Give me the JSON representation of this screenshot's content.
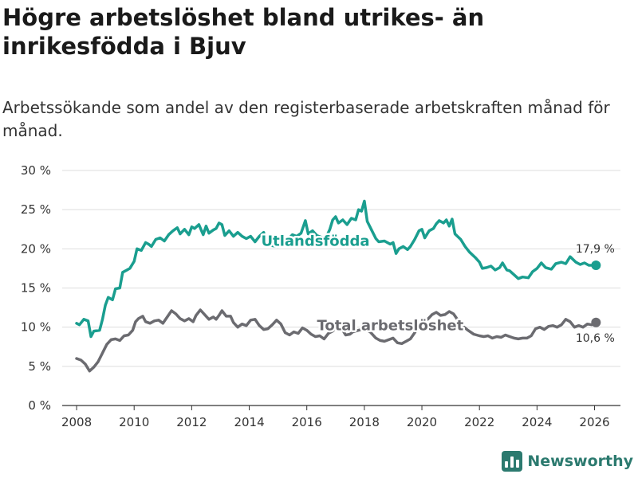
{
  "header": {
    "title": "Högre arbetslöshet bland utrikes- än inrikesfödda i Bjuv",
    "subtitle": "Arbetssökande som andel av den registerbaserade arbetskraften månad för månad."
  },
  "brand": {
    "name": "Newsworthy",
    "icon": "newsworthy-logo-icon"
  },
  "colors": {
    "utlandsfodda": "#1a9e8f",
    "total": "#6b6b70",
    "grid": "#dddddd",
    "axis": "#333333"
  },
  "chart_data": {
    "type": "line",
    "title": "Högre arbetslöshet bland utrikes- än inrikesfödda i Bjuv",
    "xlabel": "",
    "ylabel": "",
    "xlim": [
      2007.5,
      2026.9
    ],
    "ylim": [
      0,
      30
    ],
    "x_ticks": [
      2008,
      2010,
      2012,
      2014,
      2016,
      2018,
      2020,
      2022,
      2024,
      2026
    ],
    "x_tick_labels": [
      "2008",
      "2010",
      "2012",
      "2014",
      "2016",
      "2018",
      "2020",
      "2022",
      "2024",
      "2026"
    ],
    "y_ticks": [
      0,
      5,
      10,
      15,
      20,
      25,
      30
    ],
    "y_tick_labels": [
      "0 %",
      "5 %",
      "10 %",
      "15 %",
      "20 %",
      "25 %",
      "30 %"
    ],
    "grid": true,
    "series": [
      {
        "name": "Utlandsfödda",
        "color": "#1a9e8f",
        "end_label": "17,9 %",
        "points": [
          [
            2008.0,
            10.5
          ],
          [
            2008.1,
            10.3
          ],
          [
            2008.25,
            11.0
          ],
          [
            2008.4,
            10.8
          ],
          [
            2008.5,
            8.8
          ],
          [
            2008.6,
            9.5
          ],
          [
            2008.8,
            9.6
          ],
          [
            2008.9,
            11.0
          ],
          [
            2009.0,
            12.8
          ],
          [
            2009.1,
            13.8
          ],
          [
            2009.25,
            13.5
          ],
          [
            2009.35,
            14.9
          ],
          [
            2009.5,
            15.0
          ],
          [
            2009.6,
            17.0
          ],
          [
            2009.75,
            17.3
          ],
          [
            2009.85,
            17.5
          ],
          [
            2010.0,
            18.4
          ],
          [
            2010.1,
            20.0
          ],
          [
            2010.25,
            19.8
          ],
          [
            2010.4,
            20.8
          ],
          [
            2010.5,
            20.6
          ],
          [
            2010.6,
            20.3
          ],
          [
            2010.75,
            21.2
          ],
          [
            2010.9,
            21.4
          ],
          [
            2011.05,
            21.0
          ],
          [
            2011.2,
            21.8
          ],
          [
            2011.35,
            22.3
          ],
          [
            2011.5,
            22.7
          ],
          [
            2011.6,
            21.9
          ],
          [
            2011.75,
            22.5
          ],
          [
            2011.9,
            21.8
          ],
          [
            2012.0,
            22.8
          ],
          [
            2012.1,
            22.6
          ],
          [
            2012.25,
            23.1
          ],
          [
            2012.4,
            21.8
          ],
          [
            2012.5,
            22.9
          ],
          [
            2012.6,
            22.0
          ],
          [
            2012.75,
            22.4
          ],
          [
            2012.85,
            22.6
          ],
          [
            2012.95,
            23.3
          ],
          [
            2013.05,
            23.1
          ],
          [
            2013.15,
            21.7
          ],
          [
            2013.3,
            22.3
          ],
          [
            2013.45,
            21.6
          ],
          [
            2013.6,
            22.1
          ],
          [
            2013.75,
            21.6
          ],
          [
            2013.9,
            21.3
          ],
          [
            2014.05,
            21.6
          ],
          [
            2014.2,
            20.9
          ],
          [
            2014.35,
            21.6
          ],
          [
            2014.5,
            22.1
          ],
          [
            2014.6,
            20.8
          ],
          [
            2014.8,
            20.4
          ],
          [
            2015.0,
            20.3
          ],
          [
            2015.1,
            20.7
          ],
          [
            2015.3,
            21.0
          ],
          [
            2015.5,
            21.8
          ],
          [
            2015.65,
            21.6
          ],
          [
            2015.8,
            22.0
          ],
          [
            2015.95,
            23.6
          ],
          [
            2016.05,
            21.9
          ],
          [
            2016.2,
            22.3
          ],
          [
            2016.35,
            21.7
          ],
          [
            2016.5,
            21.5
          ],
          [
            2016.65,
            21.3
          ],
          [
            2016.8,
            22.5
          ],
          [
            2016.9,
            23.7
          ],
          [
            2017.0,
            24.1
          ],
          [
            2017.1,
            23.3
          ],
          [
            2017.25,
            23.7
          ],
          [
            2017.4,
            23.1
          ],
          [
            2017.55,
            23.9
          ],
          [
            2017.7,
            23.7
          ],
          [
            2017.8,
            25.0
          ],
          [
            2017.9,
            24.8
          ],
          [
            2018.0,
            26.1
          ],
          [
            2018.1,
            23.5
          ],
          [
            2018.25,
            22.4
          ],
          [
            2018.4,
            21.3
          ],
          [
            2018.5,
            20.9
          ],
          [
            2018.7,
            21.0
          ],
          [
            2018.9,
            20.6
          ],
          [
            2019.0,
            20.8
          ],
          [
            2019.1,
            19.4
          ],
          [
            2019.2,
            20.0
          ],
          [
            2019.35,
            20.3
          ],
          [
            2019.5,
            19.9
          ],
          [
            2019.6,
            20.3
          ],
          [
            2019.75,
            21.2
          ],
          [
            2019.9,
            22.3
          ],
          [
            2020.0,
            22.5
          ],
          [
            2020.1,
            21.4
          ],
          [
            2020.25,
            22.3
          ],
          [
            2020.4,
            22.6
          ],
          [
            2020.5,
            23.2
          ],
          [
            2020.6,
            23.6
          ],
          [
            2020.75,
            23.3
          ],
          [
            2020.85,
            23.7
          ],
          [
            2020.95,
            22.9
          ],
          [
            2021.05,
            23.8
          ],
          [
            2021.15,
            21.9
          ],
          [
            2021.35,
            21.2
          ],
          [
            2021.5,
            20.3
          ],
          [
            2021.65,
            19.6
          ],
          [
            2021.85,
            18.9
          ],
          [
            2022.0,
            18.3
          ],
          [
            2022.1,
            17.5
          ],
          [
            2022.25,
            17.6
          ],
          [
            2022.4,
            17.8
          ],
          [
            2022.55,
            17.3
          ],
          [
            2022.7,
            17.6
          ],
          [
            2022.8,
            18.2
          ],
          [
            2022.95,
            17.3
          ],
          [
            2023.05,
            17.2
          ],
          [
            2023.2,
            16.7
          ],
          [
            2023.35,
            16.2
          ],
          [
            2023.5,
            16.4
          ],
          [
            2023.7,
            16.3
          ],
          [
            2023.85,
            17.1
          ],
          [
            2024.0,
            17.5
          ],
          [
            2024.15,
            18.2
          ],
          [
            2024.3,
            17.6
          ],
          [
            2024.5,
            17.4
          ],
          [
            2024.65,
            18.1
          ],
          [
            2024.85,
            18.3
          ],
          [
            2025.0,
            18.1
          ],
          [
            2025.15,
            19.0
          ],
          [
            2025.35,
            18.3
          ],
          [
            2025.5,
            18.0
          ],
          [
            2025.65,
            18.2
          ],
          [
            2025.8,
            17.9
          ],
          [
            2026.05,
            17.9
          ]
        ]
      },
      {
        "name": "Total arbetslöshet",
        "color": "#6b6b70",
        "end_label": "10,6 %",
        "points": [
          [
            2008.0,
            6.0
          ],
          [
            2008.15,
            5.8
          ],
          [
            2008.3,
            5.3
          ],
          [
            2008.45,
            4.4
          ],
          [
            2008.6,
            4.9
          ],
          [
            2008.75,
            5.6
          ],
          [
            2008.9,
            6.7
          ],
          [
            2009.05,
            7.8
          ],
          [
            2009.2,
            8.4
          ],
          [
            2009.35,
            8.5
          ],
          [
            2009.5,
            8.3
          ],
          [
            2009.65,
            8.9
          ],
          [
            2009.8,
            9.0
          ],
          [
            2009.95,
            9.6
          ],
          [
            2010.05,
            10.7
          ],
          [
            2010.15,
            11.1
          ],
          [
            2010.3,
            11.4
          ],
          [
            2010.4,
            10.7
          ],
          [
            2010.55,
            10.5
          ],
          [
            2010.7,
            10.8
          ],
          [
            2010.85,
            10.9
          ],
          [
            2011.0,
            10.5
          ],
          [
            2011.15,
            11.3
          ],
          [
            2011.3,
            12.1
          ],
          [
            2011.45,
            11.7
          ],
          [
            2011.6,
            11.1
          ],
          [
            2011.75,
            10.8
          ],
          [
            2011.9,
            11.1
          ],
          [
            2012.05,
            10.7
          ],
          [
            2012.15,
            11.5
          ],
          [
            2012.3,
            12.2
          ],
          [
            2012.45,
            11.6
          ],
          [
            2012.6,
            11.0
          ],
          [
            2012.75,
            11.3
          ],
          [
            2012.85,
            11.0
          ],
          [
            2012.95,
            11.5
          ],
          [
            2013.05,
            12.1
          ],
          [
            2013.2,
            11.4
          ],
          [
            2013.35,
            11.4
          ],
          [
            2013.45,
            10.6
          ],
          [
            2013.6,
            10.0
          ],
          [
            2013.75,
            10.4
          ],
          [
            2013.9,
            10.2
          ],
          [
            2014.05,
            10.9
          ],
          [
            2014.2,
            11.0
          ],
          [
            2014.35,
            10.2
          ],
          [
            2014.5,
            9.7
          ],
          [
            2014.65,
            9.8
          ],
          [
            2014.8,
            10.3
          ],
          [
            2014.95,
            10.9
          ],
          [
            2015.1,
            10.4
          ],
          [
            2015.25,
            9.3
          ],
          [
            2015.4,
            9.0
          ],
          [
            2015.55,
            9.4
          ],
          [
            2015.7,
            9.2
          ],
          [
            2015.85,
            9.9
          ],
          [
            2016.0,
            9.6
          ],
          [
            2016.15,
            9.1
          ],
          [
            2016.3,
            8.8
          ],
          [
            2016.45,
            8.9
          ],
          [
            2016.6,
            8.5
          ],
          [
            2016.75,
            9.2
          ],
          [
            2016.9,
            9.5
          ],
          [
            2017.05,
            10.1
          ],
          [
            2017.2,
            9.9
          ],
          [
            2017.35,
            9.0
          ],
          [
            2017.5,
            9.1
          ],
          [
            2017.6,
            9.4
          ],
          [
            2017.8,
            9.6
          ],
          [
            2018.0,
            9.8
          ],
          [
            2018.2,
            9.4
          ],
          [
            2018.4,
            8.6
          ],
          [
            2018.55,
            8.3
          ],
          [
            2018.7,
            8.2
          ],
          [
            2018.85,
            8.4
          ],
          [
            2019.0,
            8.6
          ],
          [
            2019.15,
            8.0
          ],
          [
            2019.3,
            7.9
          ],
          [
            2019.45,
            8.2
          ],
          [
            2019.6,
            8.5
          ],
          [
            2019.75,
            9.3
          ],
          [
            2019.9,
            10.2
          ],
          [
            2020.05,
            10.9
          ],
          [
            2020.2,
            11.0
          ],
          [
            2020.35,
            11.6
          ],
          [
            2020.5,
            11.9
          ],
          [
            2020.65,
            11.5
          ],
          [
            2020.8,
            11.6
          ],
          [
            2020.95,
            12.0
          ],
          [
            2021.1,
            11.7
          ],
          [
            2021.25,
            10.9
          ],
          [
            2021.4,
            10.2
          ],
          [
            2021.6,
            9.6
          ],
          [
            2021.8,
            9.1
          ],
          [
            2022.0,
            8.9
          ],
          [
            2022.15,
            8.8
          ],
          [
            2022.3,
            8.9
          ],
          [
            2022.45,
            8.6
          ],
          [
            2022.6,
            8.8
          ],
          [
            2022.75,
            8.7
          ],
          [
            2022.9,
            9.0
          ],
          [
            2023.05,
            8.8
          ],
          [
            2023.2,
            8.6
          ],
          [
            2023.35,
            8.5
          ],
          [
            2023.5,
            8.6
          ],
          [
            2023.65,
            8.6
          ],
          [
            2023.8,
            8.9
          ],
          [
            2023.95,
            9.8
          ],
          [
            2024.1,
            10.0
          ],
          [
            2024.25,
            9.7
          ],
          [
            2024.4,
            10.1
          ],
          [
            2024.55,
            10.2
          ],
          [
            2024.7,
            10.0
          ],
          [
            2024.85,
            10.3
          ],
          [
            2025.0,
            11.0
          ],
          [
            2025.15,
            10.7
          ],
          [
            2025.3,
            10.0
          ],
          [
            2025.45,
            10.2
          ],
          [
            2025.6,
            10.0
          ],
          [
            2025.75,
            10.4
          ],
          [
            2025.9,
            10.3
          ],
          [
            2026.05,
            10.6
          ]
        ]
      }
    ],
    "annotations": [
      {
        "text": "Utlandsfödda",
        "series": "Utlandsfödda",
        "x": 2016.3,
        "y": 21.0
      },
      {
        "text": "Total arbetslöshet",
        "series": "Total arbetslöshet",
        "x": 2018.9,
        "y": 10.2
      }
    ]
  }
}
